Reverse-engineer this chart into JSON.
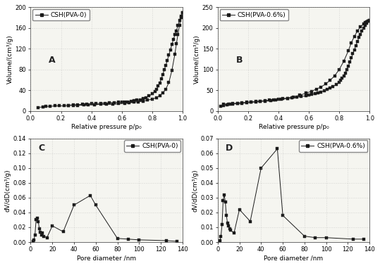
{
  "panel_A": {
    "label": "CSH(PVA-0)",
    "letter": "A",
    "xlabel": "Relative pressure p/p₀",
    "ylabel": "Volume/(cm³/g)",
    "ylim": [
      0,
      200
    ],
    "yticks": [
      0,
      40,
      80,
      120,
      160,
      200
    ],
    "xlim": [
      0.0,
      1.0
    ],
    "xticks": [
      0.0,
      0.2,
      0.4,
      0.6,
      0.8,
      1.0
    ],
    "adsorption_x": [
      0.05,
      0.08,
      0.1,
      0.13,
      0.16,
      0.19,
      0.22,
      0.25,
      0.28,
      0.31,
      0.35,
      0.38,
      0.42,
      0.46,
      0.5,
      0.54,
      0.58,
      0.62,
      0.65,
      0.68,
      0.71,
      0.74,
      0.77,
      0.8,
      0.83,
      0.85,
      0.87,
      0.89,
      0.91,
      0.93,
      0.95,
      0.96,
      0.97,
      0.98,
      0.99,
      1.0
    ],
    "adsorption_y": [
      7,
      8,
      9,
      9,
      10,
      10,
      10,
      11,
      11,
      11,
      12,
      12,
      12,
      13,
      13,
      13,
      14,
      15,
      16,
      17,
      18,
      19,
      21,
      23,
      26,
      30,
      35,
      42,
      55,
      78,
      110,
      130,
      148,
      165,
      180,
      190
    ],
    "desorption_x": [
      1.0,
      0.99,
      0.98,
      0.97,
      0.96,
      0.95,
      0.94,
      0.93,
      0.92,
      0.91,
      0.9,
      0.89,
      0.88,
      0.87,
      0.86,
      0.85,
      0.84,
      0.83,
      0.82,
      0.8,
      0.78,
      0.76,
      0.74,
      0.72,
      0.7,
      0.68,
      0.66,
      0.64,
      0.62,
      0.6,
      0.58,
      0.55,
      0.52,
      0.49,
      0.46,
      0.43,
      0.4,
      0.37,
      0.34,
      0.31,
      0.28,
      0.25
    ],
    "desorption_y": [
      190,
      183,
      175,
      165,
      155,
      147,
      138,
      128,
      118,
      108,
      98,
      88,
      80,
      70,
      62,
      54,
      48,
      42,
      38,
      33,
      29,
      26,
      24,
      22,
      21,
      20,
      19,
      18,
      18,
      17,
      17,
      16,
      16,
      15,
      15,
      14,
      14,
      13,
      13,
      12,
      12,
      11
    ]
  },
  "panel_B": {
    "label": "CSH(PVA-0.6%)",
    "letter": "B",
    "xlabel": "Relative pressure p/p₀",
    "ylabel": "Volume/(cm³/g)",
    "ylim": [
      0,
      250
    ],
    "yticks": [
      0,
      50,
      100,
      150,
      200,
      250
    ],
    "xlim": [
      0.0,
      1.0
    ],
    "xticks": [
      0.0,
      0.2,
      0.4,
      0.6,
      0.8,
      1.0
    ],
    "adsorption_x": [
      0.02,
      0.04,
      0.06,
      0.08,
      0.1,
      0.13,
      0.16,
      0.19,
      0.22,
      0.25,
      0.28,
      0.31,
      0.35,
      0.38,
      0.42,
      0.46,
      0.5,
      0.54,
      0.58,
      0.62,
      0.65,
      0.68,
      0.71,
      0.74,
      0.77,
      0.8,
      0.83,
      0.86,
      0.88,
      0.9,
      0.92,
      0.94,
      0.96,
      0.97,
      0.98,
      0.99,
      1.0
    ],
    "adsorption_y": [
      12,
      14,
      15,
      16,
      17,
      18,
      19,
      20,
      21,
      22,
      23,
      24,
      25,
      26,
      28,
      31,
      34,
      38,
      43,
      48,
      53,
      58,
      65,
      74,
      85,
      100,
      120,
      145,
      165,
      180,
      193,
      203,
      210,
      213,
      215,
      217,
      219
    ],
    "desorption_x": [
      1.0,
      0.99,
      0.98,
      0.97,
      0.96,
      0.95,
      0.94,
      0.93,
      0.92,
      0.91,
      0.9,
      0.89,
      0.88,
      0.87,
      0.86,
      0.85,
      0.84,
      0.83,
      0.82,
      0.81,
      0.8,
      0.78,
      0.76,
      0.74,
      0.72,
      0.7,
      0.68,
      0.66,
      0.64,
      0.62,
      0.6,
      0.58,
      0.55,
      0.52,
      0.49,
      0.46,
      0.43,
      0.4,
      0.37,
      0.34,
      0.31,
      0.28,
      0.25,
      0.22,
      0.19,
      0.16,
      0.13,
      0.1,
      0.07,
      0.04
    ],
    "desorption_y": [
      219,
      216,
      212,
      207,
      200,
      193,
      185,
      177,
      168,
      158,
      148,
      138,
      128,
      118,
      108,
      100,
      92,
      85,
      79,
      74,
      69,
      64,
      59,
      55,
      52,
      49,
      46,
      44,
      42,
      40,
      38,
      37,
      35,
      33,
      32,
      31,
      30,
      28,
      27,
      26,
      25,
      24,
      23,
      22,
      21,
      20,
      19,
      18,
      17,
      16
    ]
  },
  "panel_C": {
    "label": "CSH(PVA-0)",
    "letter": "C",
    "xlabel": "Pore diameter /nm",
    "ylabel": "dV/dD(cm³/g)",
    "ylim": [
      0.0,
      0.14
    ],
    "yticks": [
      0.0,
      0.02,
      0.04,
      0.06,
      0.08,
      0.1,
      0.12,
      0.14
    ],
    "xlim": [
      0,
      140
    ],
    "xticks": [
      0,
      20,
      40,
      60,
      80,
      100,
      120,
      140
    ],
    "x": [
      2,
      3,
      4,
      5,
      6,
      7,
      8,
      9,
      10,
      11,
      12,
      15,
      20,
      30,
      40,
      55,
      60,
      80,
      90,
      100,
      125,
      135
    ],
    "y": [
      0.001,
      0.003,
      0.01,
      0.03,
      0.032,
      0.028,
      0.018,
      0.013,
      0.01,
      0.012,
      0.008,
      0.006,
      0.022,
      0.014,
      0.05,
      0.063,
      0.05,
      0.005,
      0.004,
      0.003,
      0.002,
      0.001
    ]
  },
  "panel_D": {
    "label": "CSH(PVA-0.6%)",
    "letter": "D",
    "xlabel": "Pore diameter /nm",
    "ylabel": "dV/dD(cm³/g)",
    "ylim": [
      0.0,
      0.07
    ],
    "yticks": [
      0.0,
      0.01,
      0.02,
      0.03,
      0.04,
      0.05,
      0.06,
      0.07
    ],
    "xlim": [
      0,
      140
    ],
    "xticks": [
      0,
      20,
      40,
      60,
      80,
      100,
      120,
      140
    ],
    "x": [
      2,
      3,
      4,
      5,
      6,
      7,
      8,
      9,
      10,
      11,
      12,
      15,
      20,
      30,
      40,
      55,
      60,
      80,
      90,
      100,
      125,
      135
    ],
    "y": [
      0.001,
      0.004,
      0.012,
      0.028,
      0.032,
      0.027,
      0.018,
      0.013,
      0.011,
      0.009,
      0.008,
      0.006,
      0.022,
      0.014,
      0.05,
      0.063,
      0.018,
      0.004,
      0.003,
      0.003,
      0.002,
      0.002
    ]
  },
  "line_color": "#1a1a1a",
  "marker": "s",
  "markersize": 2.5,
  "bg_color": "#f5f5f0",
  "fontsize_label": 6.5,
  "fontsize_tick": 6,
  "fontsize_legend": 6.5,
  "fontsize_letter": 9
}
